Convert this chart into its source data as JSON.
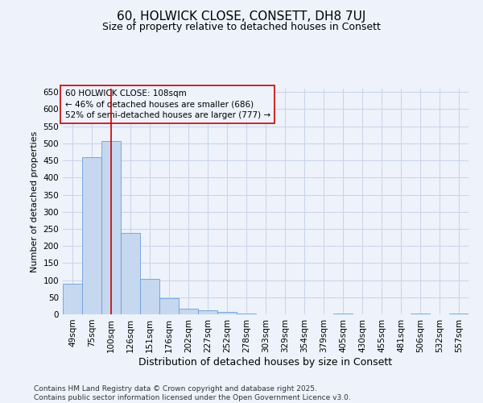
{
  "title": "60, HOLWICK CLOSE, CONSETT, DH8 7UJ",
  "subtitle": "Size of property relative to detached houses in Consett",
  "xlabel": "Distribution of detached houses by size in Consett",
  "ylabel": "Number of detached properties",
  "categories": [
    "49sqm",
    "75sqm",
    "100sqm",
    "126sqm",
    "151sqm",
    "176sqm",
    "202sqm",
    "227sqm",
    "252sqm",
    "278sqm",
    "303sqm",
    "329sqm",
    "354sqm",
    "379sqm",
    "405sqm",
    "430sqm",
    "455sqm",
    "481sqm",
    "506sqm",
    "532sqm",
    "557sqm"
  ],
  "values": [
    89,
    459,
    507,
    238,
    104,
    47,
    17,
    12,
    8,
    3,
    0,
    0,
    0,
    0,
    3,
    0,
    0,
    0,
    3,
    0,
    3
  ],
  "bar_color": "#c5d8ef",
  "bar_edge_color": "#6a9fd8",
  "grid_color": "#c8d4e8",
  "background_color": "#edf2fb",
  "vline_x_index": 2,
  "vline_color": "#cc0000",
  "annotation_text": "60 HOLWICK CLOSE: 108sqm\n← 46% of detached houses are smaller (686)\n52% of semi-detached houses are larger (777) →",
  "annotation_box_color": "#cc0000",
  "annotation_bg": "#edf2fb",
  "ylim": [
    0,
    660
  ],
  "yticks": [
    0,
    50,
    100,
    150,
    200,
    250,
    300,
    350,
    400,
    450,
    500,
    550,
    600,
    650
  ],
  "footer": "Contains HM Land Registry data © Crown copyright and database right 2025.\nContains public sector information licensed under the Open Government Licence v3.0.",
  "title_fontsize": 11,
  "subtitle_fontsize": 9,
  "xlabel_fontsize": 9,
  "ylabel_fontsize": 8,
  "tick_fontsize": 7.5,
  "annotation_fontsize": 7.5,
  "footer_fontsize": 6.5
}
